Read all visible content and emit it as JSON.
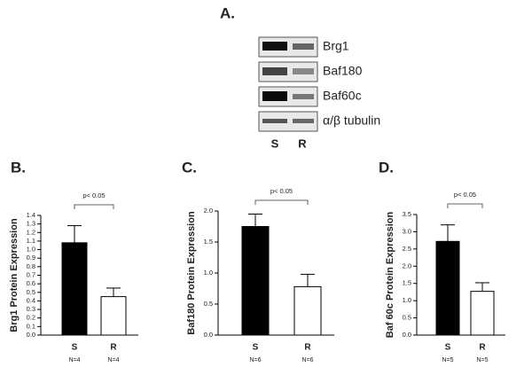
{
  "panel_a": {
    "label": "A.",
    "rows": [
      "Brg1",
      "Baf180",
      "Baf60c",
      "α/β tubulin"
    ],
    "lanes": [
      "S",
      "R"
    ]
  },
  "chart_data": [
    {
      "type": "bar",
      "panel": "B.",
      "ylabel": "Brg1 Protein Expression",
      "annotation": "p< 0.05",
      "categories": [
        "S",
        "R"
      ],
      "n_labels": [
        "N=4",
        "N=4"
      ],
      "values": [
        1.08,
        0.45
      ],
      "errors": [
        0.2,
        0.1
      ],
      "colors": [
        "#000000",
        "#ffffff"
      ],
      "ylim": [
        0,
        1.4
      ],
      "yticks": [
        {
          "value": 0,
          "label": "0.0"
        },
        0.1,
        0.2,
        0.3,
        0.4,
        0.5,
        0.6,
        0.7,
        0.8,
        0.9,
        {
          "value": 1,
          "label": "1.0"
        },
        1.1,
        1.2,
        1.3,
        1.4
      ]
    },
    {
      "type": "bar",
      "panel": "C.",
      "ylabel": "Baf180 Protein Expression",
      "annotation": "p< 0.05",
      "categories": [
        "S",
        "R"
      ],
      "n_labels": [
        "N=6",
        "N=6"
      ],
      "values": [
        1.75,
        0.78
      ],
      "errors": [
        0.2,
        0.2
      ],
      "colors": [
        "#000000",
        "#ffffff"
      ],
      "ylim": [
        0,
        2
      ],
      "yticks": [
        {
          "value": 0,
          "label": "0.0"
        },
        0.5,
        {
          "value": 1,
          "label": "1.0"
        },
        1.5,
        {
          "value": 2,
          "label": "2.0"
        }
      ]
    },
    {
      "type": "bar",
      "panel": "D.",
      "ylabel": "Baf 60c Protein Expression",
      "annotation": "p< 0.05",
      "categories": [
        "S",
        "R"
      ],
      "n_labels": [
        "N=5",
        "N=5"
      ],
      "values": [
        2.72,
        1.27
      ],
      "errors": [
        0.48,
        0.25
      ],
      "colors": [
        "#000000",
        "#ffffff"
      ],
      "ylim": [
        0,
        3.5
      ],
      "yticks": [
        {
          "value": 0,
          "label": "0.0"
        },
        0.5,
        {
          "value": 1,
          "label": "1.0"
        },
        1.5,
        {
          "value": 2,
          "label": "2.0"
        },
        2.5,
        {
          "value": 3,
          "label": "3.0"
        },
        3.5
      ]
    }
  ]
}
